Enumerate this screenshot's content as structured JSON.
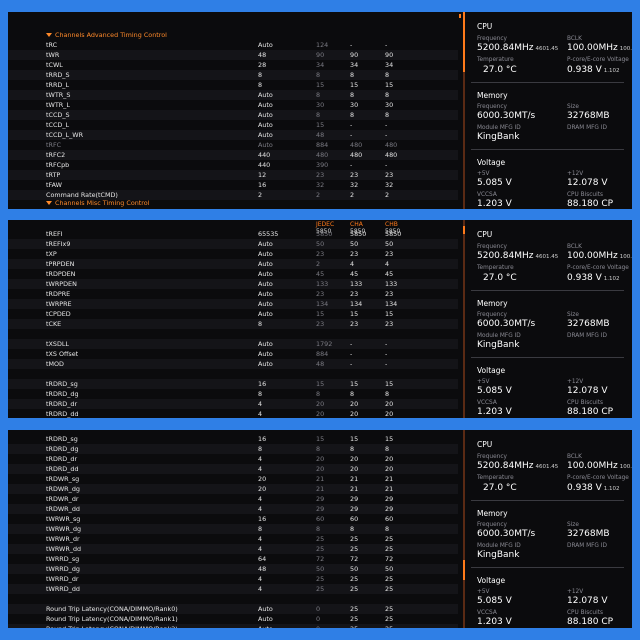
{
  "panels": [
    {
      "section_top": "Channels Advanced Timing Control",
      "section_bottom": "Channels Misc Timing Control",
      "rows": [
        {
          "name": "tRC",
          "cur": "Auto",
          "jedec": "124",
          "cha": "-",
          "chb": "-"
        },
        {
          "name": "tWR",
          "cur": "48",
          "jedec": "90",
          "cha": "90",
          "chb": "90"
        },
        {
          "name": "tCWL",
          "cur": "28",
          "jedec": "34",
          "cha": "34",
          "chb": "34"
        },
        {
          "name": "tRRD_S",
          "cur": "8",
          "jedec": "8",
          "cha": "8",
          "chb": "8"
        },
        {
          "name": "tRRD_L",
          "cur": "8",
          "jedec": "15",
          "cha": "15",
          "chb": "15"
        },
        {
          "name": "tWTR_S",
          "cur": "Auto",
          "jedec": "8",
          "cha": "8",
          "chb": "8"
        },
        {
          "name": "tWTR_L",
          "cur": "Auto",
          "jedec": "30",
          "cha": "30",
          "chb": "30"
        },
        {
          "name": "tCCD_S",
          "cur": "Auto",
          "jedec": "8",
          "cha": "8",
          "chb": "8"
        },
        {
          "name": "tCCD_L",
          "cur": "Auto",
          "jedec": "15",
          "cha": "-",
          "chb": "-"
        },
        {
          "name": "tCCD_L_WR",
          "cur": "Auto",
          "jedec": "48",
          "cha": "-",
          "chb": "-"
        },
        {
          "name": "tRFC",
          "cur": "Auto",
          "jedec": "884",
          "cha": "480",
          "chb": "480",
          "dim": true
        },
        {
          "name": "tRFC2",
          "cur": "440",
          "jedec": "480",
          "cha": "480",
          "chb": "480"
        },
        {
          "name": "tRFCpb",
          "cur": "440",
          "jedec": "390",
          "cha": "-",
          "chb": "-"
        },
        {
          "name": "tRTP",
          "cur": "12",
          "jedec": "23",
          "cha": "23",
          "chb": "23"
        },
        {
          "name": "tFAW",
          "cur": "16",
          "jedec": "32",
          "cha": "32",
          "chb": "32"
        },
        {
          "name": "Command Rate(tCMD)",
          "cur": "2",
          "jedec": "2",
          "cha": "2",
          "chb": "2"
        }
      ]
    },
    {
      "headers": {
        "jedec_t": "JEDEC",
        "jedec_v": "5850",
        "cha_t": "CHA",
        "cha_v": "5850",
        "chb_t": "CHB",
        "chb_v": "5850"
      },
      "rows": [
        {
          "name": "tREFI",
          "cur": "65535",
          "jedec": "5850",
          "cha": "5850",
          "chb": "5850"
        },
        {
          "name": "tREFIx9",
          "cur": "Auto",
          "jedec": "50",
          "cha": "50",
          "chb": "50"
        },
        {
          "name": "tXP",
          "cur": "Auto",
          "jedec": "23",
          "cha": "23",
          "chb": "23"
        },
        {
          "name": "tPRPDEN",
          "cur": "Auto",
          "jedec": "2",
          "cha": "4",
          "chb": "4"
        },
        {
          "name": "tRDPDEN",
          "cur": "Auto",
          "jedec": "45",
          "cha": "45",
          "chb": "45"
        },
        {
          "name": "tWRPDEN",
          "cur": "Auto",
          "jedec": "133",
          "cha": "133",
          "chb": "133"
        },
        {
          "name": "tRDPRE",
          "cur": "Auto",
          "jedec": "23",
          "cha": "23",
          "chb": "23"
        },
        {
          "name": "tWRPRE",
          "cur": "Auto",
          "jedec": "134",
          "cha": "134",
          "chb": "134"
        },
        {
          "name": "tCPDED",
          "cur": "Auto",
          "jedec": "15",
          "cha": "15",
          "chb": "15"
        },
        {
          "name": "tCKE",
          "cur": "8",
          "jedec": "23",
          "cha": "23",
          "chb": "23"
        },
        {
          "name": "",
          "cur": "",
          "jedec": "",
          "cha": "",
          "chb": ""
        },
        {
          "name": "tXSDLL",
          "cur": "Auto",
          "jedec": "1792",
          "cha": "-",
          "chb": "-"
        },
        {
          "name": "tXS Offset",
          "cur": "Auto",
          "jedec": "884",
          "cha": "-",
          "chb": "-"
        },
        {
          "name": "tMOD",
          "cur": "Auto",
          "jedec": "48",
          "cha": "-",
          "chb": "-"
        },
        {
          "name": "",
          "cur": "",
          "jedec": "",
          "cha": "",
          "chb": ""
        },
        {
          "name": "tRDRD_sg",
          "cur": "16",
          "jedec": "15",
          "cha": "15",
          "chb": "15"
        },
        {
          "name": "tRDRD_dg",
          "cur": "8",
          "jedec": "8",
          "cha": "8",
          "chb": "8"
        },
        {
          "name": "tRDRD_dr",
          "cur": "4",
          "jedec": "20",
          "cha": "20",
          "chb": "20"
        },
        {
          "name": "tRDRD_dd",
          "cur": "4",
          "jedec": "20",
          "cha": "20",
          "chb": "20"
        }
      ]
    },
    {
      "rows": [
        {
          "name": "tRDRD_sg",
          "cur": "16",
          "jedec": "15",
          "cha": "15",
          "chb": "15"
        },
        {
          "name": "tRDRD_dg",
          "cur": "8",
          "jedec": "8",
          "cha": "8",
          "chb": "8"
        },
        {
          "name": "tRDRD_dr",
          "cur": "4",
          "jedec": "20",
          "cha": "20",
          "chb": "20"
        },
        {
          "name": "tRDRD_dd",
          "cur": "4",
          "jedec": "20",
          "cha": "20",
          "chb": "20"
        },
        {
          "name": "tRDWR_sg",
          "cur": "20",
          "jedec": "21",
          "cha": "21",
          "chb": "21"
        },
        {
          "name": "tRDWR_dg",
          "cur": "20",
          "jedec": "21",
          "cha": "21",
          "chb": "21"
        },
        {
          "name": "tRDWR_dr",
          "cur": "4",
          "jedec": "29",
          "cha": "29",
          "chb": "29"
        },
        {
          "name": "tRDWR_dd",
          "cur": "4",
          "jedec": "29",
          "cha": "29",
          "chb": "29"
        },
        {
          "name": "tWRWR_sg",
          "cur": "16",
          "jedec": "60",
          "cha": "60",
          "chb": "60"
        },
        {
          "name": "tWRWR_dg",
          "cur": "8",
          "jedec": "8",
          "cha": "8",
          "chb": "8"
        },
        {
          "name": "tWRWR_dr",
          "cur": "4",
          "jedec": "25",
          "cha": "25",
          "chb": "25"
        },
        {
          "name": "tWRWR_dd",
          "cur": "4",
          "jedec": "25",
          "cha": "25",
          "chb": "25"
        },
        {
          "name": "tWRRD_sg",
          "cur": "64",
          "jedec": "72",
          "cha": "72",
          "chb": "72"
        },
        {
          "name": "tWRRD_dg",
          "cur": "48",
          "jedec": "50",
          "cha": "50",
          "chb": "50"
        },
        {
          "name": "tWRRD_dr",
          "cur": "4",
          "jedec": "25",
          "cha": "25",
          "chb": "25"
        },
        {
          "name": "tWRRD_dd",
          "cur": "4",
          "jedec": "25",
          "cha": "25",
          "chb": "25"
        },
        {
          "name": "",
          "cur": "",
          "jedec": "",
          "cha": "",
          "chb": ""
        },
        {
          "name": "Round Trip Latency(CONA/DIMMO/Rank0)",
          "cur": "Auto",
          "jedec": "0",
          "cha": "25",
          "chb": "25"
        },
        {
          "name": "Round Trip Latency(CONA/DIMMO/Rank1)",
          "cur": "Auto",
          "jedec": "0",
          "cha": "25",
          "chb": "25"
        },
        {
          "name": "Round Trip Latency(CONA/DIMMO/Rank2)",
          "cur": "Auto",
          "jedec": "0",
          "cha": "25",
          "chb": "25"
        }
      ]
    }
  ],
  "monitor": {
    "cpu": {
      "title": "CPU",
      "freq_label": "Frequency",
      "freq": "5200.84MHz",
      "freq_sub": "4601.45",
      "bclk_label": "BCLK",
      "bclk": "100.00MHz",
      "bclk_sub": "100.00",
      "temp_label": "Temperature",
      "temp": "27.0 °C",
      "volt_label": "P-core/E-core Voltage",
      "volt": "0.938 V",
      "volt_sub": "1.102"
    },
    "memory": {
      "title": "Memory",
      "freq_label": "Frequency",
      "freq": "6000.30MT/s",
      "size_label": "Size",
      "size": "32768MB",
      "mfg_label": "Module MFG ID",
      "mfg": "KingBank",
      "dram_label": "DRAM MFG ID",
      "dram": ""
    },
    "voltage": {
      "title": "Voltage",
      "v5_label": "+5V",
      "v5": "5.085 V",
      "v12_label": "+12V",
      "v12": "12.078 V",
      "vccsa_label": "VCCSA",
      "vccsa": "1.203 V",
      "biscuits_label": "CPU Biscuits",
      "biscuits": "88.180 CP"
    }
  },
  "colors": {
    "accent": "#ff7a1a",
    "background": "#0b0b0d",
    "frame": "#2f7fe6"
  }
}
